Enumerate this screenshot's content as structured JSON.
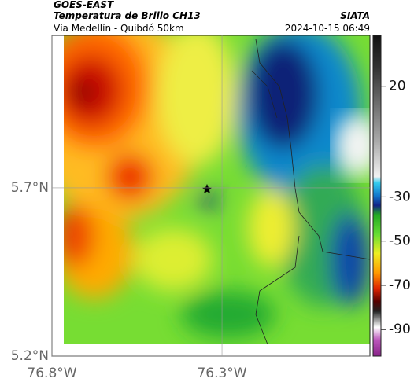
{
  "header": {
    "satellite": "GOES-EAST",
    "product": "Temperatura de Brillo CH13",
    "route": "Vía Medellín - Quibdó 50km",
    "org": "SIATA",
    "datetime": "2024-10-15 06:49"
  },
  "map": {
    "lon_lim": [
      -76.8,
      -75.865
    ],
    "lat_lim": [
      5.2,
      6.153
    ],
    "lon_ticks": [
      {
        "value": -76.8,
        "label": "76.8°W"
      },
      {
        "value": -76.3,
        "label": "76.3°W"
      }
    ],
    "lat_ticks": [
      {
        "value": 5.7,
        "label": "5.7°N"
      },
      {
        "value": 5.2,
        "label": "5.2°N"
      }
    ],
    "colorbar": {
      "lim": [
        43,
        -102
      ],
      "ticks": [
        20,
        -30,
        -50,
        -70,
        -90
      ]
    }
  }
}
